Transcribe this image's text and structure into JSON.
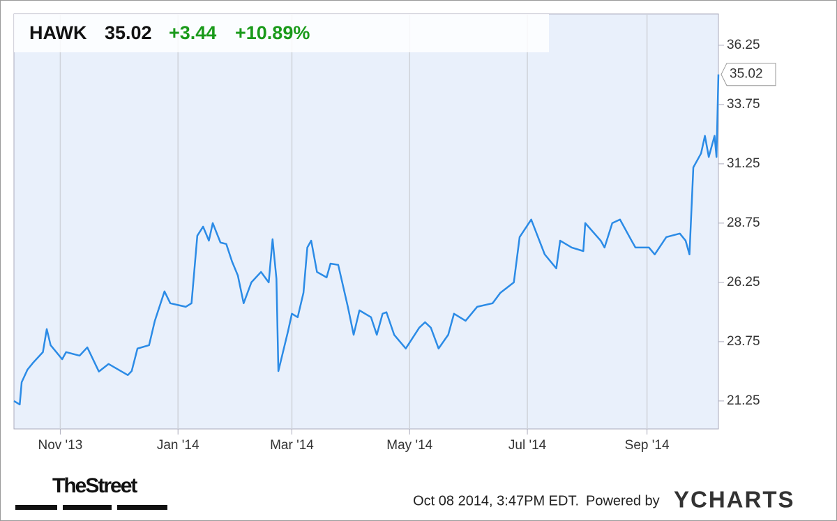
{
  "chart_data": {
    "type": "line",
    "ticker": "HAWK",
    "price": "35.02",
    "change": "+3.44",
    "change_pct": "+10.89%",
    "x": [
      0,
      3,
      4,
      7,
      10,
      15,
      17,
      19,
      25,
      27,
      34,
      38,
      44,
      49,
      59,
      61,
      64,
      70,
      73,
      78,
      81,
      89,
      92,
      95,
      98,
      101,
      103,
      107,
      110,
      113,
      116,
      119,
      123,
      128,
      132,
      134,
      136,
      137,
      142,
      144,
      147,
      150,
      152,
      154,
      157,
      162,
      164,
      168,
      173,
      176,
      179,
      185,
      188,
      191,
      193,
      197,
      203,
      210,
      213,
      216,
      220,
      225,
      228,
      234,
      240,
      248,
      252,
      259,
      262,
      268,
      275,
      281,
      283,
      289,
      295,
      296,
      304,
      306,
      310,
      314,
      320,
      322,
      329,
      332,
      338,
      345,
      348,
      350,
      352,
      356,
      358,
      360,
      363,
      364,
      365
    ],
    "series": [
      {
        "name": "HAWK",
        "color": "#2b8be6",
        "values": [
          21.25,
          21.1,
          22.04,
          22.57,
          22.87,
          23.31,
          24.28,
          23.6,
          23.01,
          23.31,
          23.16,
          23.51,
          22.49,
          22.81,
          22.34,
          22.51,
          23.46,
          23.6,
          24.63,
          25.87,
          25.37,
          25.22,
          25.37,
          28.22,
          28.6,
          28.01,
          28.75,
          27.93,
          27.87,
          27.13,
          26.54,
          25.37,
          26.25,
          26.69,
          26.25,
          28.07,
          26.4,
          22.51,
          24.19,
          24.93,
          24.78,
          25.81,
          27.72,
          28.01,
          26.69,
          26.46,
          27.04,
          26.99,
          25.22,
          24.04,
          25.07,
          24.78,
          24.04,
          24.93,
          24.99,
          24.04,
          23.46,
          24.34,
          24.57,
          24.34,
          23.46,
          24.04,
          24.93,
          24.63,
          25.22,
          25.37,
          25.81,
          26.25,
          28.16,
          28.9,
          27.43,
          26.84,
          28.01,
          27.72,
          27.57,
          28.75,
          28.01,
          27.72,
          28.75,
          28.9,
          28.01,
          27.72,
          27.72,
          27.43,
          28.16,
          28.31,
          28.01,
          27.43,
          31.1,
          31.69,
          32.43,
          31.54,
          32.43,
          31.54,
          35.02
        ]
      }
    ],
    "xlim": [
      0,
      365
    ],
    "xticks": [
      {
        "value": 24,
        "label": "Nov '13"
      },
      {
        "value": 85,
        "label": "Jan '14"
      },
      {
        "value": 144,
        "label": "Mar '14"
      },
      {
        "value": 205,
        "label": "May '14"
      },
      {
        "value": 266,
        "label": "Jul '14"
      },
      {
        "value": 328,
        "label": "Sep '14"
      }
    ],
    "ylim": [
      20.07,
      37.57
    ],
    "yticks": [
      21.25,
      23.75,
      26.25,
      28.75,
      31.25,
      33.75,
      36.25
    ],
    "grid": true,
    "timestamp": "Oct 08 2014, 3:47PM EDT.",
    "powered_by": "Powered by",
    "brand": "YCHARTS",
    "source_logo": "TheStreet"
  }
}
